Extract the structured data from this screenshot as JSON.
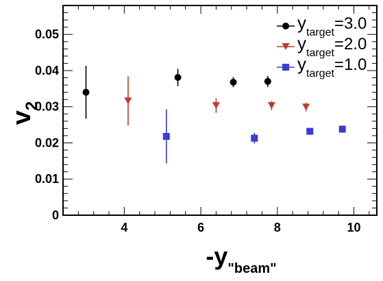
{
  "chart_data": {
    "type": "scatter",
    "title": "",
    "xlabel": {
      "main": "-y",
      "sub": "\"beam\""
    },
    "ylabel": {
      "main": "v",
      "sub": "2"
    },
    "xlim": [
      2.4,
      10.6
    ],
    "ylim": [
      0,
      0.058
    ],
    "x_major_ticks": [
      4,
      6,
      8,
      10
    ],
    "x_tick_labels": [
      "4",
      "6",
      "8",
      "10"
    ],
    "y_major_ticks": [
      0,
      0.01,
      0.02,
      0.03,
      0.04,
      0.05
    ],
    "y_tick_labels": [
      "0",
      "0.01",
      "0.02",
      "0.03",
      "0.04",
      "0.05"
    ],
    "grid": false,
    "legend_position": "top-right",
    "series": [
      {
        "name": "y_target=3.0",
        "legend": {
          "main": "y",
          "sub": "target",
          "value": "=3.0"
        },
        "marker": "circle",
        "color": "#000000",
        "points": [
          {
            "x": 3.0,
            "y": 0.034,
            "err": 0.0073
          },
          {
            "x": 5.4,
            "y": 0.0381,
            "err": 0.0024
          },
          {
            "x": 6.85,
            "y": 0.0368,
            "err": 0.0014
          },
          {
            "x": 7.75,
            "y": 0.037,
            "err": 0.0015
          }
        ]
      },
      {
        "name": "y_target=2.0",
        "legend": {
          "main": "y",
          "sub": "target",
          "value": "=2.0"
        },
        "marker": "triangle-down",
        "color": "#c0392b",
        "points": [
          {
            "x": 4.1,
            "y": 0.0316,
            "err": 0.0068
          },
          {
            "x": 6.4,
            "y": 0.0303,
            "err": 0.002
          },
          {
            "x": 7.85,
            "y": 0.0303,
            "err": 0.0013
          },
          {
            "x": 8.75,
            "y": 0.0299,
            "err": 0.0012
          }
        ]
      },
      {
        "name": "y_target=1.0",
        "legend": {
          "main": "y",
          "sub": "target",
          "value": "=1.0"
        },
        "marker": "square",
        "color": "#3b3bd6",
        "points": [
          {
            "x": 5.1,
            "y": 0.0218,
            "err": 0.0075
          },
          {
            "x": 7.4,
            "y": 0.0213,
            "err": 0.0015
          },
          {
            "x": 8.85,
            "y": 0.0232,
            "err": 0.0007
          },
          {
            "x": 9.7,
            "y": 0.0238,
            "err": 0.001
          }
        ]
      }
    ]
  }
}
